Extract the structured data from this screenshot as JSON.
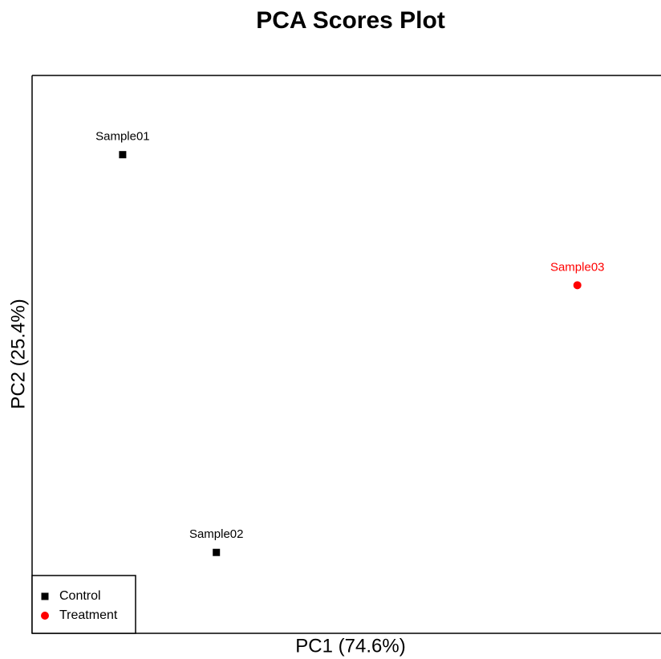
{
  "chart_data": {
    "type": "scatter",
    "title": "PCA Scores Plot",
    "x_label": "PC1 (74.6%)",
    "y_label": "PC2 (25.4%)",
    "xlim": [
      0,
      100
    ],
    "ylim": [
      0,
      100
    ],
    "grid": false,
    "legend": "bottom-left",
    "series": [
      {
        "name": "Control",
        "color": "#000000",
        "marker": "square",
        "x": [
          14.4,
          29.3
        ],
        "values": [
          85.8,
          14.5
        ],
        "labels": [
          "Sample01",
          "Sample02"
        ]
      },
      {
        "name": "Treatment",
        "color": "#ff0000",
        "marker": "circle",
        "x": [
          86.7
        ],
        "values": [
          62.4
        ],
        "labels": [
          "Sample03"
        ]
      }
    ]
  }
}
